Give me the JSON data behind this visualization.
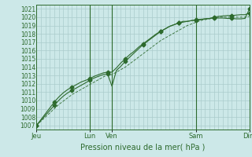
{
  "title": "",
  "xlabel": "Pression niveau de la mer( hPa )",
  "bg_color": "#cce8e8",
  "plot_bg_color": "#cce8e8",
  "grid_color": "#aacccc",
  "line_color": "#2d6a2d",
  "ylim": [
    1006.5,
    1021.5
  ],
  "yticks": [
    1007,
    1008,
    1009,
    1010,
    1011,
    1012,
    1013,
    1014,
    1015,
    1016,
    1017,
    1018,
    1019,
    1020,
    1021
  ],
  "xtick_positions": [
    0,
    12,
    17,
    36,
    48
  ],
  "xtick_labels": [
    "Jeu",
    "Lun",
    "Ven",
    "Sam",
    "Dim"
  ],
  "vline_positions": [
    12,
    17,
    36,
    48
  ],
  "x_total": 48,
  "series1_x": [
    0,
    1,
    2,
    3,
    4,
    5,
    6,
    7,
    8,
    9,
    10,
    11,
    12,
    13,
    14,
    15,
    16,
    17,
    18,
    19,
    20,
    21,
    22,
    23,
    24,
    25,
    26,
    27,
    28,
    29,
    30,
    31,
    32,
    33,
    34,
    35,
    36,
    37,
    38,
    39,
    40,
    41,
    42,
    43,
    44,
    45,
    46,
    47,
    48
  ],
  "series1_y": [
    1007.0,
    1007.5,
    1008.0,
    1008.5,
    1009.0,
    1009.5,
    1009.9,
    1010.3,
    1010.7,
    1011.0,
    1011.3,
    1011.6,
    1011.9,
    1012.2,
    1012.5,
    1012.8,
    1013.1,
    1013.1,
    1013.4,
    1013.7,
    1014.0,
    1014.4,
    1014.8,
    1015.2,
    1015.6,
    1016.0,
    1016.4,
    1016.8,
    1017.2,
    1017.5,
    1017.8,
    1018.1,
    1018.4,
    1018.7,
    1019.0,
    1019.2,
    1019.4,
    1019.6,
    1019.7,
    1019.8,
    1019.9,
    1020.0,
    1020.0,
    1020.0,
    1020.0,
    1020.0,
    1020.0,
    1020.0,
    1020.1
  ],
  "series2_x": [
    0,
    1,
    2,
    3,
    4,
    5,
    6,
    7,
    8,
    9,
    10,
    11,
    12,
    13,
    14,
    15,
    16,
    17,
    18,
    19,
    20,
    21,
    22,
    23,
    24,
    25,
    26,
    27,
    28,
    29,
    30,
    31,
    32,
    33,
    34,
    35,
    36,
    37,
    38,
    39,
    40,
    41,
    42,
    43,
    44,
    45,
    46,
    47,
    48
  ],
  "series2_y": [
    1007.0,
    1007.6,
    1008.2,
    1008.8,
    1009.4,
    1010.0,
    1010.5,
    1010.9,
    1011.2,
    1011.5,
    1011.8,
    1012.1,
    1012.4,
    1012.7,
    1012.9,
    1013.1,
    1013.2,
    1011.7,
    1013.6,
    1014.1,
    1014.7,
    1015.2,
    1015.7,
    1016.2,
    1016.7,
    1017.1,
    1017.5,
    1017.9,
    1018.3,
    1018.6,
    1018.9,
    1019.1,
    1019.3,
    1019.5,
    1019.5,
    1019.6,
    1019.65,
    1019.7,
    1019.8,
    1019.85,
    1019.9,
    1019.9,
    1019.9,
    1019.85,
    1019.85,
    1019.8,
    1019.8,
    1019.85,
    1021.0
  ],
  "series3_x": [
    0,
    1,
    2,
    3,
    4,
    5,
    6,
    7,
    8,
    9,
    10,
    11,
    12,
    13,
    14,
    15,
    16,
    17,
    18,
    19,
    20,
    21,
    22,
    23,
    24,
    25,
    26,
    27,
    28,
    29,
    30,
    31,
    32,
    33,
    34,
    35,
    36,
    37,
    38,
    39,
    40,
    41,
    42,
    43,
    44,
    45,
    46,
    47,
    48
  ],
  "series3_y": [
    1007.0,
    1007.7,
    1008.4,
    1009.1,
    1009.8,
    1010.4,
    1010.9,
    1011.3,
    1011.6,
    1011.9,
    1012.2,
    1012.4,
    1012.6,
    1012.9,
    1013.1,
    1013.3,
    1013.4,
    1013.4,
    1013.9,
    1014.5,
    1015.0,
    1015.5,
    1015.9,
    1016.4,
    1016.8,
    1017.2,
    1017.6,
    1018.0,
    1018.3,
    1018.6,
    1018.9,
    1019.1,
    1019.3,
    1019.4,
    1019.5,
    1019.6,
    1019.7,
    1019.75,
    1019.8,
    1019.85,
    1020.0,
    1020.1,
    1020.15,
    1020.2,
    1020.2,
    1020.25,
    1020.3,
    1020.3,
    1020.5
  ],
  "markers2_x": [
    0,
    4,
    8,
    12,
    16,
    20,
    24,
    28,
    32,
    36,
    40,
    44,
    48
  ],
  "markers2_y": [
    1007.0,
    1009.4,
    1011.2,
    1012.4,
    1013.2,
    1014.7,
    1016.7,
    1018.3,
    1019.3,
    1019.65,
    1019.9,
    1019.85,
    1021.0
  ],
  "markers3_x": [
    0,
    4,
    8,
    12,
    16,
    20,
    24,
    28,
    32,
    36,
    40,
    44,
    48
  ],
  "markers3_y": [
    1007.0,
    1009.8,
    1011.6,
    1012.6,
    1013.4,
    1015.0,
    1016.8,
    1018.3,
    1019.3,
    1019.7,
    1020.0,
    1020.2,
    1020.5
  ]
}
